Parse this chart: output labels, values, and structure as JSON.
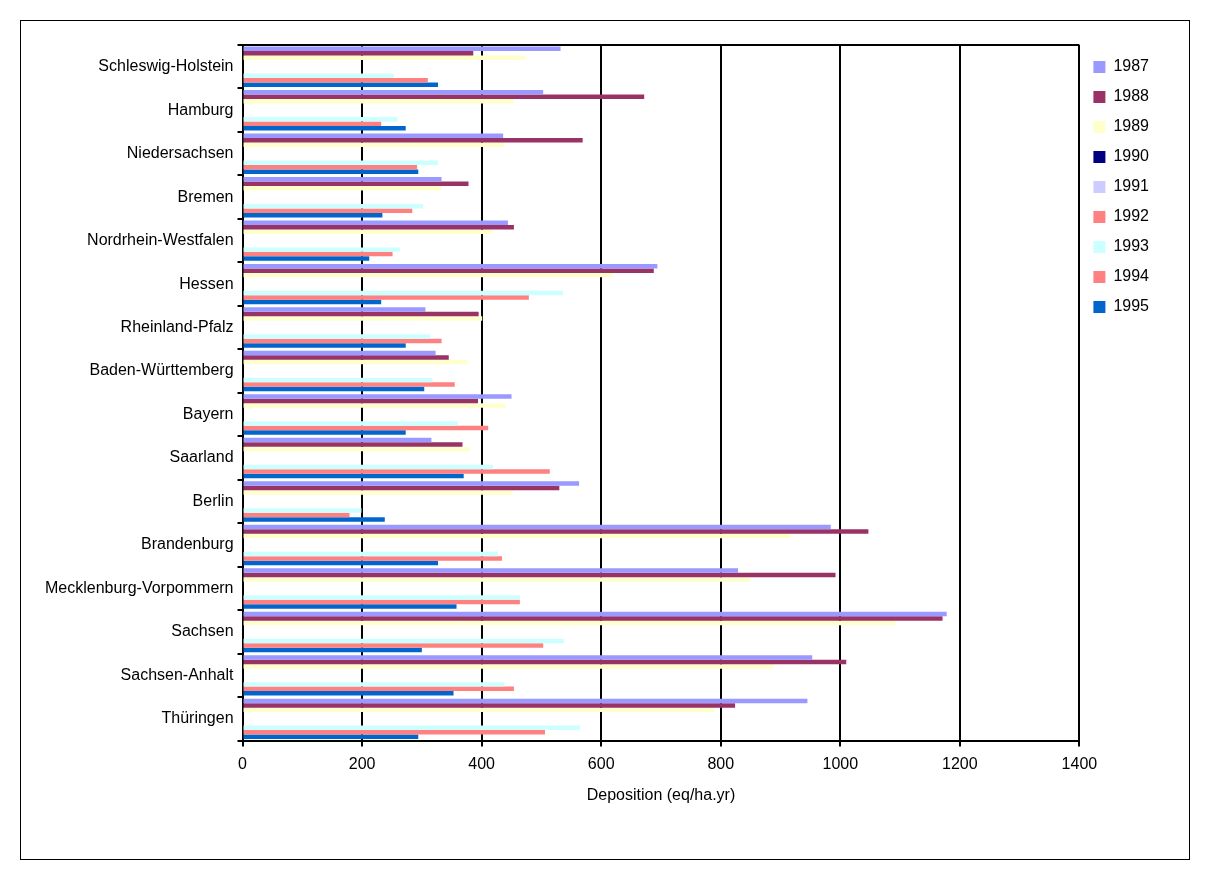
{
  "chart_data": {
    "type": "bar",
    "orientation": "horizontal",
    "xlabel": "Deposition (eq/ha.yr)",
    "categories": [
      "Schleswig-Holstein",
      "Hamburg",
      "Niedersachsen",
      "Bremen",
      "Nordrhein-Westfalen",
      "Hessen",
      "Rheinland-Pfalz",
      "Baden-Württemberg",
      "Bayern",
      "Saarland",
      "Berlin",
      "Brandenburg",
      "Mecklenburg-Vorpommern",
      "Sachsen",
      "Sachsen-Anhalt",
      "Thüringen"
    ],
    "series": [
      {
        "name": "1987",
        "color": "#9999ff",
        "values": [
          532,
          503,
          436,
          333,
          444,
          694,
          306,
          323,
          450,
          316,
          563,
          984,
          829,
          1178,
          953,
          945
        ]
      },
      {
        "name": "1988",
        "color": "#993366",
        "values": [
          386,
          672,
          569,
          378,
          454,
          688,
          395,
          345,
          394,
          368,
          530,
          1047,
          992,
          1171,
          1010,
          824
        ]
      },
      {
        "name": "1989",
        "color": "#ffffcc",
        "values": [
          473,
          454,
          438,
          333,
          417,
          619,
          401,
          376,
          440,
          380,
          452,
          917,
          849,
          1092,
          888,
          790
        ]
      },
      {
        "name": "1990",
        "color": "#000080",
        "values": [
          null,
          null,
          null,
          null,
          null,
          null,
          null,
          null,
          null,
          null,
          null,
          null,
          null,
          null,
          null,
          null
        ]
      },
      {
        "name": "1991",
        "color": "#ccccff",
        "values": [
          null,
          null,
          null,
          null,
          null,
          null,
          null,
          null,
          null,
          null,
          null,
          null,
          null,
          null,
          null,
          null
        ]
      },
      {
        "name": "1992",
        "color": "#ff8080",
        "values": [
          null,
          null,
          null,
          null,
          null,
          null,
          null,
          null,
          null,
          null,
          null,
          null,
          null,
          null,
          null,
          null
        ]
      },
      {
        "name": "1993",
        "color": "#ccffff",
        "values": [
          253,
          259,
          327,
          302,
          263,
          536,
          314,
          318,
          360,
          419,
          199,
          427,
          464,
          538,
          438,
          565
        ]
      },
      {
        "name": "1994",
        "color": "#ff8080",
        "values": [
          310,
          232,
          292,
          284,
          251,
          479,
          333,
          355,
          411,
          514,
          179,
          434,
          464,
          503,
          454,
          506
        ]
      },
      {
        "name": "1995",
        "color": "#0066cc",
        "values": [
          327,
          273,
          294,
          234,
          212,
          232,
          273,
          304,
          273,
          370,
          238,
          327,
          358,
          300,
          353,
          294
        ]
      }
    ],
    "xlim": [
      0,
      1400
    ],
    "xticks": [
      0,
      200,
      400,
      600,
      800,
      1000,
      1200,
      1400
    ],
    "grid": "x",
    "legend": "top right"
  }
}
